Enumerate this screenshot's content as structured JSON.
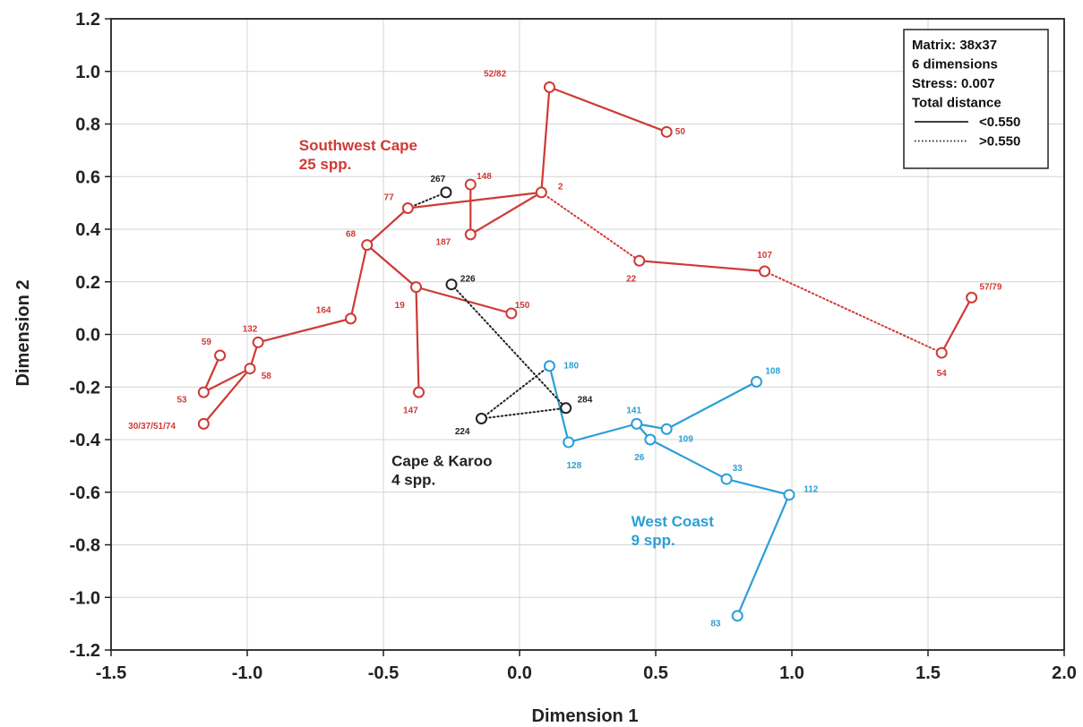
{
  "chart_data": {
    "type": "scatter",
    "xlabel": "Dimension 1",
    "ylabel": "Dimension 2",
    "xlim": [
      -1.5,
      2.0
    ],
    "ylim": [
      -1.2,
      1.2
    ],
    "xticks": [
      -1.5,
      -1.0,
      -0.5,
      0.0,
      0.5,
      1.0,
      1.5,
      2.0
    ],
    "xtick_labels": [
      "-1.5",
      "-1.0",
      "-0.5",
      "0.0",
      "0.5",
      "1.0",
      "1.5",
      "2.0"
    ],
    "yticks": [
      -1.2,
      -1.0,
      -0.8,
      -0.6,
      -0.4,
      -0.2,
      0.0,
      0.2,
      0.4,
      0.6,
      0.8,
      1.0,
      1.2
    ],
    "ytick_labels": [
      "-1.2",
      "-1.0",
      "-0.8",
      "-0.6",
      "-0.4",
      "-0.2",
      "0.0",
      "0.2",
      "0.4",
      "0.6",
      "0.8",
      "1.0",
      "1.2"
    ],
    "grid": true,
    "legend_position": "top-right",
    "legend": {
      "lines": [
        "Matrix: 38x37",
        "6 dimensions",
        "Stress: 0.007",
        "Total distance"
      ],
      "entries": [
        {
          "style": "solid",
          "label": "<0.550"
        },
        {
          "style": "dotted",
          "label": ">0.550"
        }
      ]
    },
    "group_labels": [
      {
        "lines": [
          "Southwest Cape",
          "25 spp."
        ],
        "x": -0.81,
        "y": 0.7,
        "color": "#cf3a36"
      },
      {
        "lines": [
          "Cape & Karoo",
          "4 spp."
        ],
        "x": -0.47,
        "y": -0.5,
        "color": "#222222"
      },
      {
        "lines": [
          "West Coast",
          "9 spp."
        ],
        "x": 0.41,
        "y": -0.73,
        "color": "#2a9fd6"
      }
    ],
    "groups": [
      {
        "color": "#cf3a36",
        "points": [
          {
            "id": "52/82",
            "x": 0.11,
            "y": 0.94,
            "lx": -0.09,
            "ly": 0.99
          },
          {
            "id": "50",
            "x": 0.54,
            "y": 0.77,
            "lx": 0.59,
            "ly": 0.77
          },
          {
            "id": "2",
            "x": 0.08,
            "y": 0.54,
            "lx": 0.15,
            "ly": 0.56
          },
          {
            "id": "148",
            "x": -0.18,
            "y": 0.57,
            "lx": -0.13,
            "ly": 0.6
          },
          {
            "id": "187",
            "x": -0.18,
            "y": 0.38,
            "lx": -0.28,
            "ly": 0.35
          },
          {
            "id": "77",
            "x": -0.41,
            "y": 0.48,
            "lx": -0.48,
            "ly": 0.52
          },
          {
            "id": "68",
            "x": -0.56,
            "y": 0.34,
            "lx": -0.62,
            "ly": 0.38
          },
          {
            "id": "19",
            "x": -0.38,
            "y": 0.18,
            "lx": -0.44,
            "ly": 0.11
          },
          {
            "id": "150",
            "x": -0.03,
            "y": 0.08,
            "lx": 0.01,
            "ly": 0.11
          },
          {
            "id": "164",
            "x": -0.62,
            "y": 0.06,
            "lx": -0.72,
            "ly": 0.09
          },
          {
            "id": "132",
            "x": -0.96,
            "y": -0.03,
            "lx": -0.99,
            "ly": 0.02
          },
          {
            "id": "59",
            "x": -1.1,
            "y": -0.08,
            "lx": -1.15,
            "ly": -0.03
          },
          {
            "id": "58",
            "x": -0.99,
            "y": -0.13,
            "lx": -0.93,
            "ly": -0.16
          },
          {
            "id": "53",
            "x": -1.16,
            "y": -0.22,
            "lx": -1.24,
            "ly": -0.25
          },
          {
            "id": "30/37/51/74",
            "x": -1.16,
            "y": -0.34,
            "lx": -1.35,
            "ly": -0.35
          },
          {
            "id": "147",
            "x": -0.37,
            "y": -0.22,
            "lx": -0.4,
            "ly": -0.29
          },
          {
            "id": "22",
            "x": 0.44,
            "y": 0.28,
            "lx": 0.41,
            "ly": 0.21
          },
          {
            "id": "107",
            "x": 0.9,
            "y": 0.24,
            "lx": 0.9,
            "ly": 0.3
          },
          {
            "id": "54",
            "x": 1.55,
            "y": -0.07,
            "lx": 1.55,
            "ly": -0.15
          },
          {
            "id": "57/79",
            "x": 1.66,
            "y": 0.14,
            "lx": 1.73,
            "ly": 0.18
          }
        ],
        "solid_links": [
          [
            "52/82",
            "50"
          ],
          [
            "52/82",
            "2"
          ],
          [
            "2",
            "77"
          ],
          [
            "2",
            "187"
          ],
          [
            "187",
            "148"
          ],
          [
            "77",
            "68"
          ],
          [
            "68",
            "19"
          ],
          [
            "68",
            "164"
          ],
          [
            "19",
            "150"
          ],
          [
            "19",
            "147"
          ],
          [
            "164",
            "132"
          ],
          [
            "132",
            "58"
          ],
          [
            "58",
            "53"
          ],
          [
            "58",
            "30/37/51/74"
          ],
          [
            "59",
            "53"
          ],
          [
            "22",
            "107"
          ],
          [
            "54",
            "57/79"
          ]
        ],
        "dotted_links": [
          [
            "2",
            "22"
          ],
          [
            "107",
            "54"
          ]
        ]
      },
      {
        "color": "#2a9fd6",
        "points": [
          {
            "id": "180",
            "x": 0.11,
            "y": -0.12,
            "lx": 0.19,
            "ly": -0.12
          },
          {
            "id": "128",
            "x": 0.18,
            "y": -0.41,
            "lx": 0.2,
            "ly": -0.5
          },
          {
            "id": "141",
            "x": 0.43,
            "y": -0.34,
            "lx": 0.42,
            "ly": -0.29
          },
          {
            "id": "109",
            "x": 0.54,
            "y": -0.36,
            "lx": 0.61,
            "ly": -0.4
          },
          {
            "id": "26",
            "x": 0.48,
            "y": -0.4,
            "lx": 0.44,
            "ly": -0.47
          },
          {
            "id": "108",
            "x": 0.87,
            "y": -0.18,
            "lx": 0.93,
            "ly": -0.14
          },
          {
            "id": "33",
            "x": 0.76,
            "y": -0.55,
            "lx": 0.8,
            "ly": -0.51
          },
          {
            "id": "112",
            "x": 0.99,
            "y": -0.61,
            "lx": 1.07,
            "ly": -0.59
          },
          {
            "id": "83",
            "x": 0.8,
            "y": -1.07,
            "lx": 0.72,
            "ly": -1.1
          }
        ],
        "solid_links": [
          [
            "180",
            "128"
          ],
          [
            "128",
            "141"
          ],
          [
            "141",
            "109"
          ],
          [
            "109",
            "108"
          ],
          [
            "141",
            "26"
          ],
          [
            "26",
            "33"
          ],
          [
            "33",
            "112"
          ],
          [
            "112",
            "83"
          ]
        ],
        "dotted_links": []
      },
      {
        "color": "#222222",
        "points": [
          {
            "id": "267",
            "x": -0.27,
            "y": 0.54,
            "lx": -0.3,
            "ly": 0.59
          },
          {
            "id": "226",
            "x": -0.25,
            "y": 0.19,
            "lx": -0.19,
            "ly": 0.21
          },
          {
            "id": "224",
            "x": -0.14,
            "y": -0.32,
            "lx": -0.21,
            "ly": -0.37
          },
          {
            "id": "284",
            "x": 0.17,
            "y": -0.28,
            "lx": 0.24,
            "ly": -0.25
          }
        ],
        "solid_links": [],
        "dotted_links": []
      }
    ],
    "cross_dotted_links": [
      {
        "from": "267",
        "to": "77",
        "color": "#222222"
      },
      {
        "from": "226",
        "to": "284",
        "color": "#222222"
      },
      {
        "from": "224",
        "to": "284",
        "color": "#222222"
      },
      {
        "from": "224",
        "to": "180",
        "color": "#222222"
      }
    ]
  }
}
